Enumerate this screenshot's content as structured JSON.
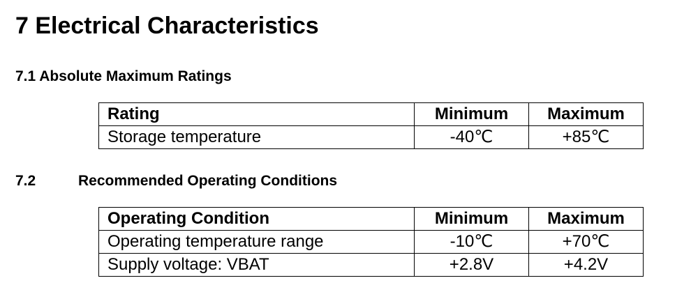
{
  "heading": "7 Electrical Characteristics",
  "section1": {
    "title": "7.1 Absolute Maximum Ratings",
    "table": {
      "header": [
        "Rating",
        "Minimum",
        "Maximum"
      ],
      "rows": [
        [
          "Storage temperature",
          "-40℃",
          "+85℃"
        ]
      ]
    }
  },
  "section2": {
    "number": "7.2",
    "title": "Recommended Operating Conditions",
    "table": {
      "header": [
        "Operating Condition",
        "Minimum",
        "Maximum"
      ],
      "rows": [
        [
          "Operating temperature range",
          "-10℃",
          "+70℃"
        ],
        [
          "Supply voltage: VBAT",
          "+2.8V",
          "+4.2V"
        ]
      ]
    }
  }
}
